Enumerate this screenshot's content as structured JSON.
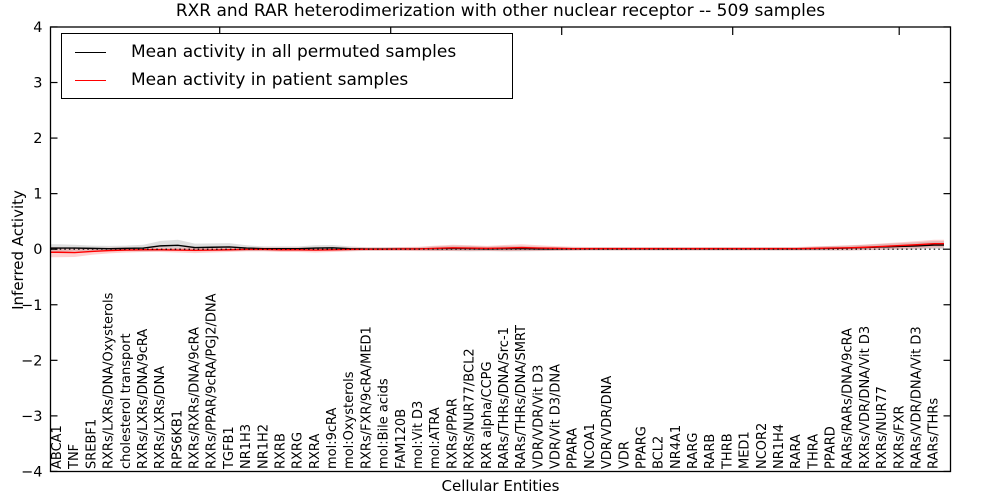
{
  "figure": {
    "title": "RXR and RAR heterodimerization with other nuclear receptor -- 509 samples",
    "xlabel": "Cellular Entities",
    "ylabel": "Inferred Activity"
  },
  "legend": {
    "entries": [
      {
        "label": "Mean activity in all permuted samples",
        "color": "#000000"
      },
      {
        "label": "Mean activity in patient samples",
        "color": "#ff0000"
      }
    ],
    "position": "upper left"
  },
  "chart_data": {
    "type": "line",
    "title": "RXR and RAR heterodimerization with other nuclear receptor -- 509 samples",
    "xlabel": "Cellular Entities",
    "ylabel": "Inferred Activity",
    "ylim": [
      -4,
      4
    ],
    "yticks": [
      4,
      3,
      2,
      1,
      0,
      -1,
      -2,
      -3,
      -4
    ],
    "ytick_labels": [
      "4",
      "3",
      "2",
      "1",
      "0",
      "−1",
      "−2",
      "−3",
      "−4"
    ],
    "grid": false,
    "legend_position": "upper left",
    "zero_line": {
      "style": "dotted",
      "color": "#000000",
      "y": 0
    },
    "categories": [
      "ABCA1",
      "TNF",
      "SREBF1",
      "RXRs/LXRs/DNA/Oxysterols",
      "cholesterol transport",
      "RXRs/LXRs/DNA/9cRA",
      "RXRs/LXRs/DNA",
      "RPS6KB1",
      "RXRs/RXRs/DNA/9cRA",
      "RXRs/PPAR/9cRA/PGJ2/DNA",
      "TGFB1",
      "NR1H3",
      "NR1H2",
      "RXRB",
      "RXRG",
      "RXRA",
      "mol:9cRA",
      "mol:Oxysterols",
      "RXRs/FXR/9cRA/MED1",
      "mol:Bile acids",
      "FAM120B",
      "mol:Vit D3",
      "mol:ATRA",
      "RXRs/PPAR",
      "RXRs/NUR77/BCL2",
      "RXR alpha/CCPG",
      "RARs/THRs/DNA/Src-1",
      "RARs/THRs/DNA/SMRT",
      "VDR/VDR/Vit D3",
      "VDR/Vit D3/DNA",
      "PPARA",
      "NCOA1",
      "VDR/VDR/DNA",
      "VDR",
      "PPARG",
      "BCL2",
      "NR4A1",
      "RARG",
      "RARB",
      "THRB",
      "MED1",
      "NCOR2",
      "NR1H4",
      "RARA",
      "THRA",
      "PPARD",
      "RARs/RARs/DNA/9cRA",
      "RXRs/VDR/DNA/Vit D3",
      "RXRs/NUR77",
      "RXRs/FXR",
      "RARs/VDR/DNA/Vit D3",
      "RARs/THRs"
    ],
    "series": [
      {
        "name": "Mean activity in all permuted samples",
        "color": "#000000",
        "band_color": "rgba(0,0,0,0.13)",
        "values": [
          0.02,
          0.02,
          0.015,
          0.01,
          0.015,
          0.02,
          0.06,
          0.07,
          0.03,
          0.035,
          0.04,
          0.02,
          0.01,
          0.01,
          0.01,
          0.02,
          0.025,
          0.01,
          0.005,
          0.005,
          0.005,
          0.005,
          0.01,
          0.015,
          0.01,
          0.005,
          0.01,
          0.01,
          0.005,
          0.005,
          0.005,
          0.005,
          0.005,
          0.005,
          0.005,
          0.005,
          0.005,
          0.005,
          0.005,
          0.005,
          0.005,
          0.005,
          0.005,
          0.005,
          0.01,
          0.015,
          0.02,
          0.03,
          0.04,
          0.05,
          0.06,
          0.075
        ],
        "band": [
          0.07,
          0.06,
          0.05,
          0.05,
          0.05,
          0.06,
          0.09,
          0.1,
          0.07,
          0.07,
          0.07,
          0.05,
          0.04,
          0.04,
          0.04,
          0.05,
          0.05,
          0.04,
          0.03,
          0.03,
          0.03,
          0.03,
          0.04,
          0.05,
          0.05,
          0.04,
          0.05,
          0.05,
          0.04,
          0.035,
          0.03,
          0.03,
          0.03,
          0.03,
          0.03,
          0.03,
          0.03,
          0.03,
          0.03,
          0.03,
          0.03,
          0.03,
          0.03,
          0.03,
          0.035,
          0.04,
          0.045,
          0.05,
          0.055,
          0.06,
          0.065,
          0.07
        ]
      },
      {
        "name": "Mean activity in patient samples",
        "color": "#ff0000",
        "band_color": "rgba(255,0,0,0.18)",
        "values": [
          -0.055,
          -0.06,
          -0.04,
          -0.025,
          -0.015,
          -0.01,
          -0.01,
          -0.015,
          -0.02,
          -0.015,
          -0.01,
          -0.005,
          -0.005,
          -0.01,
          -0.01,
          -0.015,
          -0.01,
          -0.005,
          0,
          0,
          0.005,
          0.005,
          0.015,
          0.025,
          0.02,
          0.015,
          0.02,
          0.03,
          0.02,
          0.015,
          0.01,
          0.01,
          0.01,
          0.01,
          0.01,
          0.01,
          0.01,
          0.01,
          0.01,
          0.01,
          0.01,
          0.01,
          0.01,
          0.01,
          0.015,
          0.02,
          0.025,
          0.035,
          0.05,
          0.065,
          0.08,
          0.1
        ],
        "band": [
          0.09,
          0.08,
          0.06,
          0.05,
          0.045,
          0.04,
          0.04,
          0.045,
          0.05,
          0.045,
          0.04,
          0.035,
          0.035,
          0.04,
          0.04,
          0.045,
          0.04,
          0.035,
          0.03,
          0.03,
          0.035,
          0.04,
          0.05,
          0.055,
          0.05,
          0.045,
          0.055,
          0.06,
          0.05,
          0.04,
          0.035,
          0.03,
          0.03,
          0.03,
          0.03,
          0.03,
          0.03,
          0.03,
          0.03,
          0.03,
          0.03,
          0.03,
          0.03,
          0.03,
          0.035,
          0.04,
          0.045,
          0.05,
          0.055,
          0.06,
          0.065,
          0.07
        ]
      }
    ]
  }
}
